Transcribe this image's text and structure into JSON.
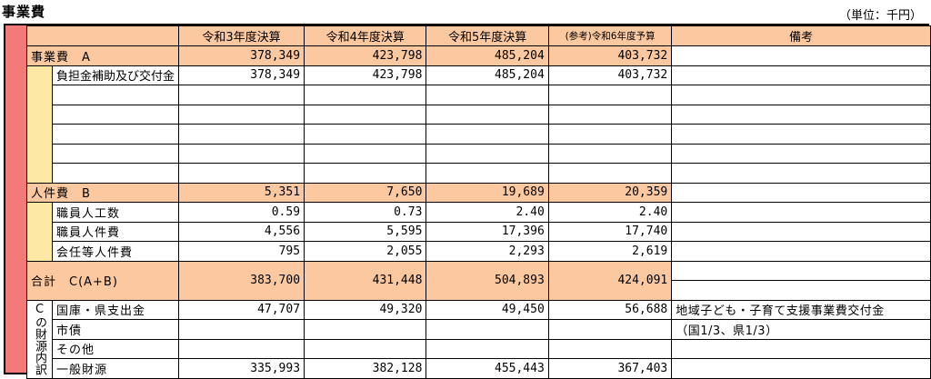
{
  "title": "事業費",
  "unit": "（単位：千円）",
  "columns": [
    "令和3年度決算",
    "令和4年度決算",
    "令和5年度決算",
    "(参考)令和6年度予算",
    "備考"
  ],
  "jigyohi": {
    "label": "事業費　A",
    "values": [
      "378,349",
      "423,798",
      "485,204",
      "403,732"
    ],
    "items": [
      {
        "label": "負担金補助及び交付金",
        "values": [
          "378,349",
          "423,798",
          "485,204",
          "403,732"
        ]
      }
    ]
  },
  "jinkenhi": {
    "label": "人件費　B",
    "values": [
      "5,351",
      "7,650",
      "19,689",
      "20,359"
    ],
    "items": [
      {
        "label": "職員人工数",
        "values": [
          "0.59",
          "0.73",
          "2.40",
          "2.40"
        ]
      },
      {
        "label": "職員人件費",
        "values": [
          "4,556",
          "5,595",
          "17,396",
          "17,740"
        ]
      },
      {
        "label": "会任等人件費",
        "values": [
          "795",
          "2,055",
          "2,293",
          "2,619"
        ]
      }
    ]
  },
  "total": {
    "label": "合計　C(A+B)",
    "values": [
      "383,700",
      "431,448",
      "504,893",
      "424,091"
    ]
  },
  "zaigen": {
    "label": "Cの財源内訳",
    "items": [
      {
        "label": "国庫・県支出金",
        "values": [
          "47,707",
          "49,320",
          "49,450",
          "56,688"
        ]
      },
      {
        "label": "市債",
        "values": [
          "",
          "",
          "",
          ""
        ]
      },
      {
        "label": "その他",
        "values": [
          "",
          "",
          "",
          ""
        ]
      },
      {
        "label": "一般財源",
        "values": [
          "335,993",
          "382,128",
          "455,443",
          "367,403"
        ]
      }
    ],
    "remarks": [
      "地域子ども・子育て支援事業費交付金",
      "（国1/3、県1/3）"
    ]
  }
}
